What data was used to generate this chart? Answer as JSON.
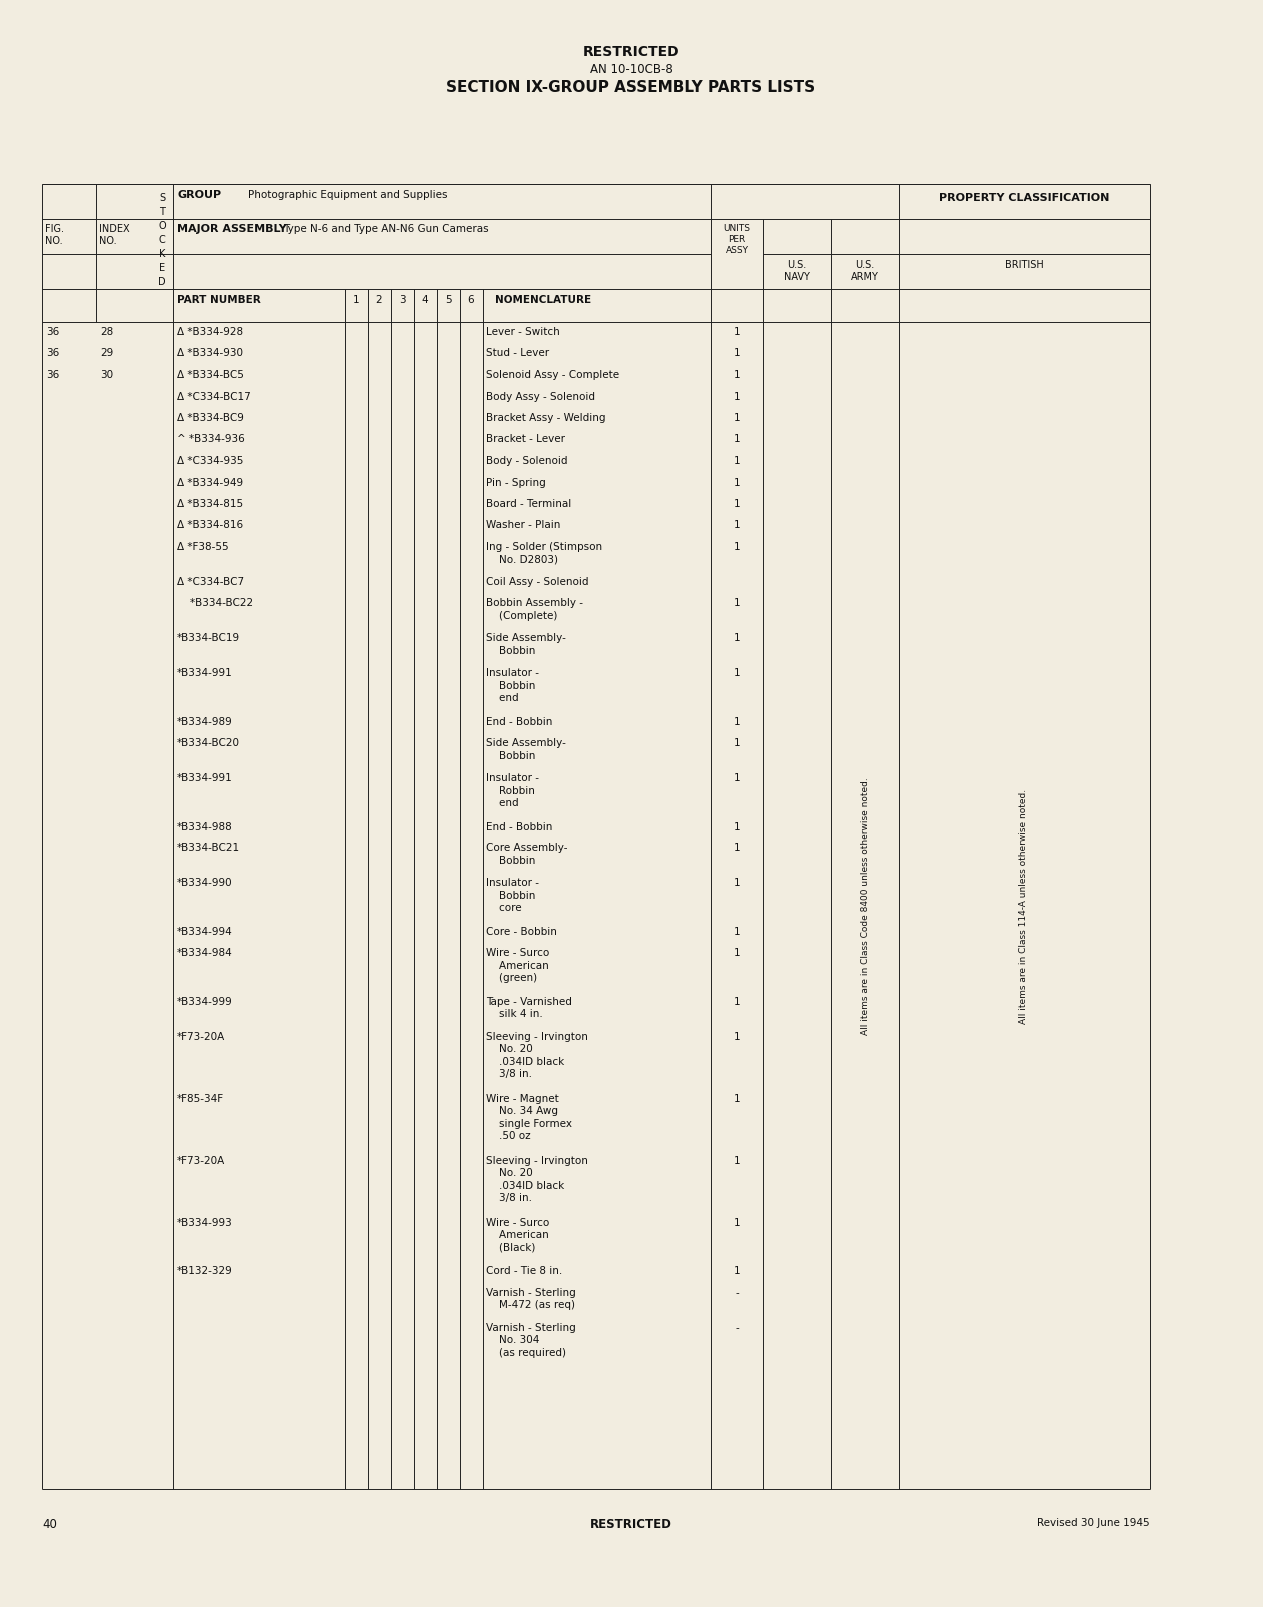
{
  "bg_color": "#f2ede0",
  "title1": "RESTRICTED",
  "title2": "AN 10-10CB-8",
  "title3": "SECTION IX-GROUP ASSEMBLY PARTS LISTS",
  "header_group": "GROUP",
  "header_group_val": "Photographic Equipment and Supplies",
  "header_major": "MAJOR ASSEMBLY",
  "header_major_val": "Type N-6 and Type AN-N6 Gun Cameras",
  "header_part": "PART NUMBER",
  "header_cols": [
    "1",
    "2",
    "3",
    "4",
    "5",
    "6"
  ],
  "header_nomenclature": "NOMENCLATURE",
  "header_units": "UNITS\nPER\nASSY",
  "header_prop": "PROPERTY CLASSIFICATION",
  "header_navy": "U.S.\nNAVY",
  "header_army": "U.S.\nARMY",
  "header_british": "BRITISH",
  "col_fig": "FIG.\nNO.",
  "col_index": "INDEX\nNO.",
  "col_stocked": "S\nT\nO\nC\nK\nE\nD",
  "rows": [
    {
      "fig": "36",
      "idx": "28",
      "part": "Δ *B334-928",
      "nom": "Lever - Switch",
      "units": "1",
      "nom_lines": 1
    },
    {
      "fig": "36",
      "idx": "29",
      "part": "Δ *B334-930",
      "nom": "Stud - Lever",
      "units": "1",
      "nom_lines": 1
    },
    {
      "fig": "36",
      "idx": "30",
      "part": "Δ *B334-BC5",
      "nom": "Solenoid Assy - Complete",
      "units": "1",
      "nom_lines": 1
    },
    {
      "fig": "",
      "idx": "",
      "part": "Δ *C334-BC17",
      "nom": "Body Assy - Solenoid",
      "units": "1",
      "nom_lines": 1
    },
    {
      "fig": "",
      "idx": "",
      "part": "Δ *B334-BC9",
      "nom": "Bracket Assy - Welding",
      "units": "1",
      "nom_lines": 1
    },
    {
      "fig": "",
      "idx": "",
      "part": "^ *B334-936",
      "nom": "Bracket - Lever",
      "units": "1",
      "nom_lines": 1
    },
    {
      "fig": "",
      "idx": "",
      "part": "Δ *C334-935",
      "nom": "Body - Solenoid",
      "units": "1",
      "nom_lines": 1
    },
    {
      "fig": "",
      "idx": "",
      "part": "Δ *B334-949",
      "nom": "Pin - Spring",
      "units": "1",
      "nom_lines": 1
    },
    {
      "fig": "",
      "idx": "",
      "part": "Δ *B334-815",
      "nom": "Board - Terminal",
      "units": "1",
      "nom_lines": 1
    },
    {
      "fig": "",
      "idx": "",
      "part": "Δ *B334-816",
      "nom": "Washer - Plain",
      "units": "1",
      "nom_lines": 1
    },
    {
      "fig": "",
      "idx": "",
      "part": "Δ *F38-55",
      "nom": "Ing - Solder (Stimpson\n    No. D2803)",
      "units": "1",
      "nom_lines": 2
    },
    {
      "fig": "",
      "idx": "",
      "part": "Δ *C334-BC7",
      "nom": "Coil Assy - Solenoid",
      "units": "",
      "nom_lines": 1
    },
    {
      "fig": "",
      "idx": "",
      "part": "    *B334-BC22",
      "nom": "Bobbin Assembly -\n    (Complete)",
      "units": "1",
      "nom_lines": 2
    },
    {
      "fig": "",
      "idx": "",
      "part": "*B334-BC19",
      "nom": "Side Assembly-\n    Bobbin",
      "units": "1",
      "nom_lines": 2
    },
    {
      "fig": "",
      "idx": "",
      "part": "*B334-991",
      "nom": "Insulator -\n    Bobbin\n    end",
      "units": "1",
      "nom_lines": 3
    },
    {
      "fig": "",
      "idx": "",
      "part": "*B334-989",
      "nom": "End - Bobbin",
      "units": "1",
      "nom_lines": 1
    },
    {
      "fig": "",
      "idx": "",
      "part": "*B334-BC20",
      "nom": "Side Assembly-\n    Bobbin",
      "units": "1",
      "nom_lines": 2
    },
    {
      "fig": "",
      "idx": "",
      "part": "*B334-991",
      "nom": "Insulator -\n    Robbin\n    end",
      "units": "1",
      "nom_lines": 3
    },
    {
      "fig": "",
      "idx": "",
      "part": "*B334-988",
      "nom": "End - Bobbin",
      "units": "1",
      "nom_lines": 1
    },
    {
      "fig": "",
      "idx": "",
      "part": "*B334-BC21",
      "nom": "Core Assembly-\n    Bobbin",
      "units": "1",
      "nom_lines": 2
    },
    {
      "fig": "",
      "idx": "",
      "part": "*B334-990",
      "nom": "Insulator -\n    Bobbin\n    core",
      "units": "1",
      "nom_lines": 3
    },
    {
      "fig": "",
      "idx": "",
      "part": "*B334-994",
      "nom": "Core - Bobbin",
      "units": "1",
      "nom_lines": 1
    },
    {
      "fig": "",
      "idx": "",
      "part": "*B334-984",
      "nom": "Wire - Surco\n    American\n    (green)",
      "units": "1",
      "nom_lines": 3
    },
    {
      "fig": "",
      "idx": "",
      "part": "*B334-999",
      "nom": "Tape - Varnished\n    silk 4 in.",
      "units": "1",
      "nom_lines": 2
    },
    {
      "fig": "",
      "idx": "",
      "part": "*F73-20A",
      "nom": "Sleeving - Irvington\n    No. 20\n    .034ID black\n    3/8 in.",
      "units": "1",
      "nom_lines": 4
    },
    {
      "fig": "",
      "idx": "",
      "part": "*F85-34F",
      "nom": "Wire - Magnet\n    No. 34 Awg\n    single Formex\n    .50 oz",
      "units": "1",
      "nom_lines": 4
    },
    {
      "fig": "",
      "idx": "",
      "part": "*F73-20A",
      "nom": "Sleeving - Irvington\n    No. 20\n    .034ID black\n    3/8 in.",
      "units": "1",
      "nom_lines": 4
    },
    {
      "fig": "",
      "idx": "",
      "part": "*B334-993",
      "nom": "Wire - Surco\n    American\n    (Black)",
      "units": "1",
      "nom_lines": 3
    },
    {
      "fig": "",
      "idx": "",
      "part": "*B132-329",
      "nom": "Cord - Tie 8 in.",
      "units": "1",
      "nom_lines": 1
    },
    {
      "fig": "",
      "idx": "",
      "part": "",
      "nom": "Varnish - Sterling\n    M-472 (as req)",
      "units": "-",
      "nom_lines": 2
    },
    {
      "fig": "",
      "idx": "",
      "part": "",
      "nom": "Varnish - Sterling\n    No. 304\n    (as required)",
      "units": "-",
      "nom_lines": 3
    }
  ],
  "footer_page": "40",
  "footer_center": "RESTRICTED",
  "footer_right": "Revised 30 June 1945",
  "sideways_text1": "All items are in Class Code 8400 unless otherwise noted.",
  "sideways_text2": "All items are in Class 114-A unless otherwise noted."
}
